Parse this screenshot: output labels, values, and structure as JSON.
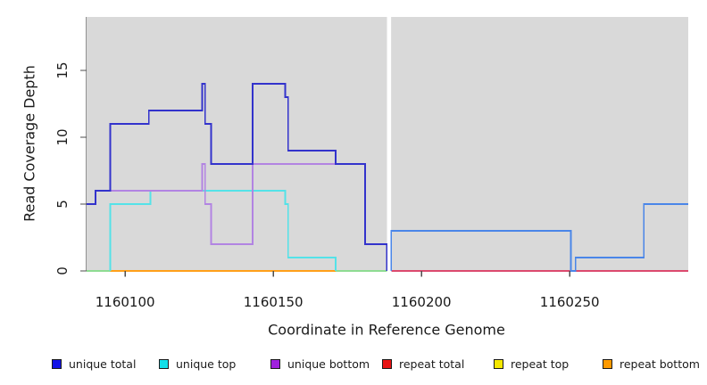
{
  "chart_data": {
    "type": "line",
    "subtype": "step",
    "title": "",
    "xlabel": "Coordinate in Reference Genome",
    "ylabel": "Read Coverage Depth",
    "xlim": [
      1160087,
      1160290
    ],
    "ylim": [
      0,
      19
    ],
    "grid": "off",
    "panel_background": "#d9d9d9",
    "gap": {
      "from": 1160188.35,
      "to": 1160189.75
    },
    "x_ticks": {
      "values": [
        1160100,
        1160150,
        1160200,
        1160250
      ],
      "labels": [
        "1160100",
        "1160150",
        "1160200",
        "1160250"
      ]
    },
    "y_ticks": {
      "values": [
        0,
        5,
        10,
        15
      ],
      "labels": [
        "0",
        "5",
        "10",
        "15"
      ]
    },
    "legend_position": "bottom",
    "legend": [
      {
        "label": "unique total",
        "color": "#1414e6"
      },
      {
        "label": "unique top",
        "color": "#12dfe8"
      },
      {
        "label": "unique bottom",
        "color": "#a021dd"
      },
      {
        "label": "repeat total",
        "color": "#e81414"
      },
      {
        "label": "repeat top",
        "color": "#f5e800"
      },
      {
        "label": "repeat bottom",
        "color": "#ff9a00"
      }
    ],
    "series": [
      {
        "name": "repeat top",
        "depth": 0,
        "segments": [
          {
            "color": "#8edc92",
            "steps": [
              [
                1160087,
                0
              ],
              [
                1160095,
                0
              ]
            ]
          },
          {
            "color": "#8edc92",
            "steps": [
              [
                1160171,
                0
              ],
              [
                1160188.3,
                0
              ]
            ]
          }
        ]
      },
      {
        "name": "repeat bottom",
        "depth": 0,
        "segments": [
          {
            "color": "#ffa019",
            "steps": [
              [
                1160095,
                0
              ],
              [
                1160171,
                0
              ]
            ]
          }
        ]
      },
      {
        "name": "repeat total",
        "depth": 0,
        "segments": [
          {
            "color": "#dc4a6e",
            "steps": [
              [
                1160189.8,
                0
              ],
              [
                1160290,
                0
              ]
            ]
          }
        ]
      },
      {
        "name": "unique top",
        "segments": [
          {
            "color": "#54e2e8",
            "steps": [
              [
                1160095,
                0
              ],
              [
                1160095,
                5
              ],
              [
                1160108.5,
                6
              ],
              [
                1160154,
                5
              ],
              [
                1160155,
                1
              ],
              [
                1160171,
                0
              ]
            ]
          }
        ]
      },
      {
        "name": "unique bottom",
        "segments": [
          {
            "color": "#b284e2",
            "steps": [
              [
                1160087,
                5
              ],
              [
                1160090,
                6
              ],
              [
                1160126,
                8
              ],
              [
                1160127,
                5
              ],
              [
                1160129,
                2
              ],
              [
                1160143,
                8
              ],
              [
                1160181,
                2
              ],
              [
                1160188.3,
                0
              ]
            ]
          }
        ]
      },
      {
        "name": "unique total",
        "segments": [
          {
            "color": "#3333cc",
            "steps": [
              [
                1160087,
                5
              ],
              [
                1160090,
                6
              ],
              [
                1160095,
                11
              ],
              [
                1160108,
                12
              ],
              [
                1160126,
                14
              ],
              [
                1160127,
                11
              ],
              [
                1160129,
                8
              ],
              [
                1160143,
                14
              ],
              [
                1160154,
                13
              ],
              [
                1160155,
                9
              ],
              [
                1160171,
                8
              ],
              [
                1160181,
                2
              ],
              [
                1160188.3,
                0
              ]
            ]
          },
          {
            "color": "#4a86e8",
            "steps": [
              [
                1160189.8,
                0
              ],
              [
                1160189.8,
                3
              ],
              [
                1160250.4,
                0
              ],
              [
                1160252,
                1
              ],
              [
                1160275,
                5
              ],
              [
                1160290,
                5
              ]
            ]
          }
        ]
      }
    ]
  }
}
